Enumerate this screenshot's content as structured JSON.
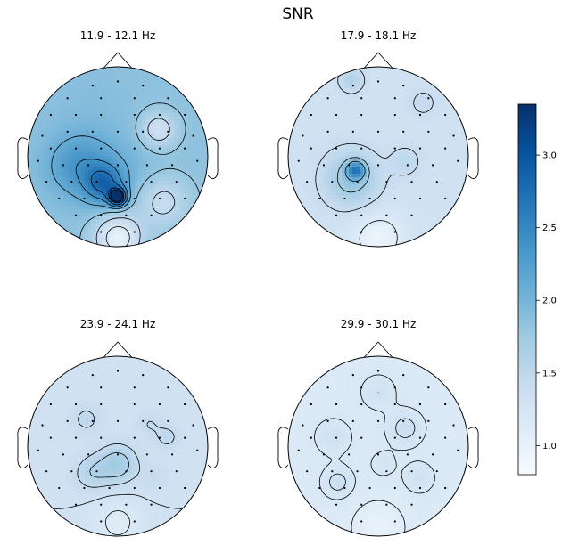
{
  "figure": {
    "title": "SNR"
  },
  "chart_data": {
    "type": "heatmap",
    "title": "SNR",
    "colormap": "Blues",
    "colorbar": {
      "range": [
        0.8,
        3.35
      ],
      "ticks": [
        1.0,
        1.5,
        2.0,
        2.5,
        3.0
      ],
      "tick_labels": [
        "1.0",
        "1.5",
        "2.0",
        "2.5",
        "3.0"
      ],
      "colors": [
        "#f7fbff",
        "#deebf7",
        "#c6dbef",
        "#9ecae1",
        "#6baed6",
        "#4292c6",
        "#2171b5",
        "#08519c",
        "#08306b"
      ]
    },
    "panels": [
      {
        "title": "11.9 - 12.1 Hz",
        "background_snr": 1.85,
        "features": [
          {
            "u": 0.0,
            "v": -0.15,
            "snr": 2.0,
            "spread": 0.32
          },
          {
            "u": -0.45,
            "v": -0.1,
            "snr": 2.3,
            "spread": 0.25
          },
          {
            "u": -0.3,
            "v": 0.55,
            "snr": 1.9,
            "spread": 0.35
          },
          {
            "u": 0.0,
            "v": -0.45,
            "snr": 3.35,
            "spread": 0.07
          },
          {
            "u": -0.15,
            "v": -0.3,
            "snr": 2.6,
            "spread": 0.15
          },
          {
            "u": 0.45,
            "v": 0.3,
            "snr": 1.3,
            "spread": 0.14
          },
          {
            "u": 0.0,
            "v": -0.9,
            "snr": 1.0,
            "spread": 0.18
          },
          {
            "u": 0.5,
            "v": -0.5,
            "snr": 1.4,
            "spread": 0.2
          }
        ],
        "contour_levels": [
          1.2,
          1.5,
          1.8,
          2.1,
          2.4,
          2.7,
          3.0,
          3.2
        ]
      },
      {
        "title": "17.9 - 18.1 Hz",
        "background_snr": 1.3,
        "features": [
          {
            "u": -0.3,
            "v": -0.25,
            "snr": 1.8,
            "spread": 0.22
          },
          {
            "u": -0.25,
            "v": -0.15,
            "snr": 2.3,
            "spread": 0.07
          },
          {
            "u": 0.3,
            "v": -0.05,
            "snr": 1.5,
            "spread": 0.12
          },
          {
            "u": -0.3,
            "v": 0.85,
            "snr": 1.6,
            "spread": 0.1
          },
          {
            "u": 0.5,
            "v": 0.6,
            "snr": 1.45,
            "spread": 0.12
          },
          {
            "u": 0.0,
            "v": -0.9,
            "snr": 0.95,
            "spread": 0.2
          }
        ],
        "contour_levels": [
          1.1,
          1.4,
          1.7,
          2.0
        ]
      },
      {
        "title": "23.9 - 24.1 Hz",
        "background_snr": 1.3,
        "features": [
          {
            "u": 0.0,
            "v": -0.2,
            "snr": 1.7,
            "spread": 0.16
          },
          {
            "u": -0.35,
            "v": 0.3,
            "snr": 1.5,
            "spread": 0.12
          },
          {
            "u": 0.35,
            "v": 0.25,
            "snr": 1.45,
            "spread": 0.1
          },
          {
            "u": 0.55,
            "v": 0.1,
            "snr": 1.5,
            "spread": 0.1
          },
          {
            "u": -0.3,
            "v": -0.3,
            "snr": 1.55,
            "spread": 0.14
          },
          {
            "u": 0.4,
            "v": -0.35,
            "snr": 1.4,
            "spread": 0.12
          },
          {
            "u": 0.0,
            "v": -0.85,
            "snr": 1.1,
            "spread": 0.18
          }
        ],
        "contour_levels": [
          1.15,
          1.3,
          1.45,
          1.6
        ]
      },
      {
        "title": "29.9 - 30.1 Hz",
        "background_snr": 1.15,
        "features": [
          {
            "u": 0.3,
            "v": 0.2,
            "snr": 1.35,
            "spread": 0.14
          },
          {
            "u": -0.5,
            "v": 0.1,
            "snr": 1.3,
            "spread": 0.14
          },
          {
            "u": -0.45,
            "v": -0.4,
            "snr": 1.35,
            "spread": 0.12
          },
          {
            "u": 0.45,
            "v": -0.35,
            "snr": 1.3,
            "spread": 0.12
          },
          {
            "u": 0.0,
            "v": 0.6,
            "snr": 1.3,
            "spread": 0.13
          },
          {
            "u": 0.05,
            "v": -0.2,
            "snr": 1.25,
            "spread": 0.11
          },
          {
            "u": 0.0,
            "v": -0.9,
            "snr": 1.0,
            "spread": 0.2
          }
        ],
        "contour_levels": [
          1.1,
          1.2,
          1.3
        ]
      }
    ],
    "sensors": [
      [
        0.0,
        0.9
      ],
      [
        -0.3,
        0.85
      ],
      [
        0.3,
        0.85
      ],
      [
        -0.6,
        0.7
      ],
      [
        -0.2,
        0.7
      ],
      [
        0.2,
        0.7
      ],
      [
        0.6,
        0.7
      ],
      [
        -0.8,
        0.5
      ],
      [
        -0.5,
        0.5
      ],
      [
        -0.2,
        0.5
      ],
      [
        0.2,
        0.5
      ],
      [
        0.5,
        0.5
      ],
      [
        0.8,
        0.5
      ],
      [
        -0.9,
        0.25
      ],
      [
        -0.6,
        0.3
      ],
      [
        -0.3,
        0.3
      ],
      [
        0.0,
        0.3
      ],
      [
        0.3,
        0.3
      ],
      [
        0.6,
        0.3
      ],
      [
        0.9,
        0.25
      ],
      [
        -0.8,
        0.1
      ],
      [
        -0.5,
        0.1
      ],
      [
        -0.2,
        0.1
      ],
      [
        0.2,
        0.1
      ],
      [
        0.5,
        0.1
      ],
      [
        0.8,
        0.1
      ],
      [
        -0.95,
        -0.05
      ],
      [
        -0.65,
        -0.1
      ],
      [
        -0.35,
        -0.1
      ],
      [
        0.0,
        -0.1
      ],
      [
        0.35,
        -0.1
      ],
      [
        0.65,
        -0.1
      ],
      [
        0.95,
        -0.05
      ],
      [
        -0.85,
        -0.3
      ],
      [
        -0.55,
        -0.3
      ],
      [
        -0.25,
        -0.3
      ],
      [
        0.1,
        -0.3
      ],
      [
        0.4,
        -0.3
      ],
      [
        0.7,
        -0.3
      ],
      [
        -0.7,
        -0.5
      ],
      [
        -0.4,
        -0.5
      ],
      [
        -0.1,
        -0.5
      ],
      [
        0.2,
        -0.5
      ],
      [
        0.5,
        -0.5
      ],
      [
        0.8,
        -0.5
      ],
      [
        -0.5,
        -0.7
      ],
      [
        -0.2,
        -0.7
      ],
      [
        0.1,
        -0.7
      ],
      [
        0.4,
        -0.7
      ],
      [
        -0.2,
        -0.9
      ],
      [
        0.2,
        -0.9
      ]
    ]
  }
}
